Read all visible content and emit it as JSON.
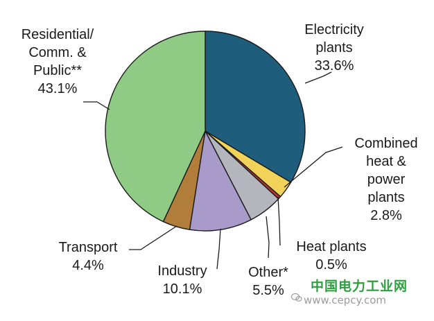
{
  "chart_data": {
    "type": "pie",
    "title": "",
    "slices": [
      {
        "name": "Electricity plants",
        "lines": [
          "Electricity",
          "plants"
        ],
        "value": 33.6,
        "label_value": "33.6%",
        "color": "#1e5d7c"
      },
      {
        "name": "Combined heat & power plants",
        "lines": [
          "Combined",
          "heat &",
          "power",
          "plants"
        ],
        "value": 2.8,
        "label_value": "2.8%",
        "color": "#f2d35a"
      },
      {
        "name": "Heat plants",
        "lines": [
          "Heat plants"
        ],
        "value": 0.5,
        "label_value": "0.5%",
        "color": "#b5352b"
      },
      {
        "name": "Other*",
        "lines": [
          "Other*"
        ],
        "value": 5.5,
        "label_value": "5.5%",
        "color": "#b3b6bd"
      },
      {
        "name": "Industry",
        "lines": [
          "Industry"
        ],
        "value": 10.1,
        "label_value": "10.1%",
        "color": "#a89ac9"
      },
      {
        "name": "Transport",
        "lines": [
          "Transport"
        ],
        "value": 4.4,
        "label_value": "4.4%",
        "color": "#b07d3a"
      },
      {
        "name": "Residential/ Comm. & Public**",
        "lines": [
          "Residential/",
          "Comm. &",
          "Public**"
        ],
        "value": 43.1,
        "label_value": "43.1%",
        "color": "#8fcb84"
      }
    ],
    "start_angle_deg": 0,
    "direction": "clockwise"
  },
  "watermark": {
    "cn": "中国电力工业网",
    "url": "www.cepcy.com",
    "color": "#2e9e3f"
  }
}
